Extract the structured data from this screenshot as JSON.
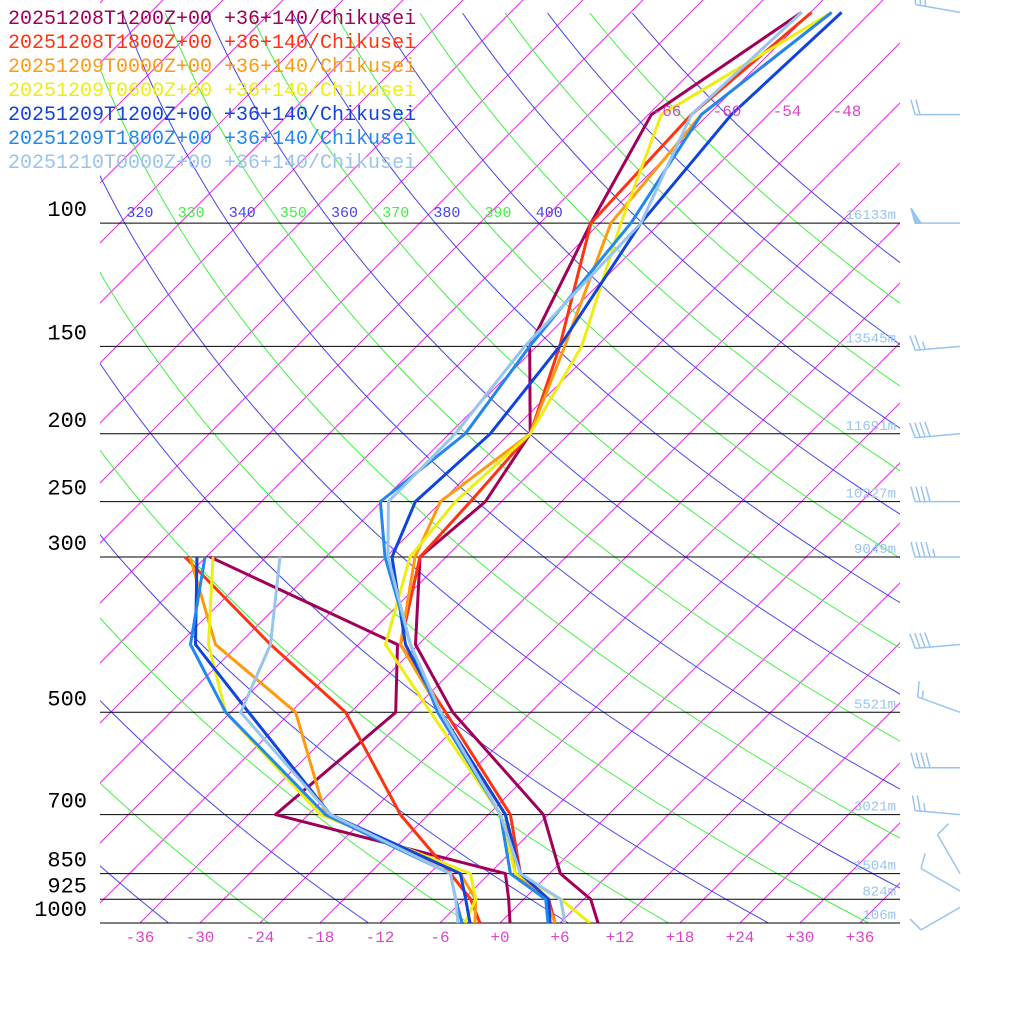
{
  "chart_data": {
    "type": "skewt",
    "levels": [
      1000,
      925,
      850,
      700,
      500,
      400,
      300,
      250,
      200,
      150,
      100,
      70,
      50
    ],
    "series": [
      {
        "name": "20251208T1200Z+00 +36+140/Chikusei",
        "color": "#a0005a",
        "temperature": [
          9.8,
          6.7,
          1.1,
          -6.5,
          -25.8,
          -36.3,
          -44.6,
          -43.6,
          -45.9,
          -54.7,
          -60.9,
          -65.7,
          -60.9
        ],
        "dewpoint": [
          1.0,
          -1.5,
          -4.4,
          -33.3,
          -31.5,
          -38.1,
          -65.6,
          null,
          null,
          null,
          null,
          null,
          null
        ]
      },
      {
        "name": "20251208T1800Z+00 +36+140/Chikusei",
        "color": "#ff3311",
        "temperature": [
          5.5,
          2.5,
          -2.9,
          -9.8,
          -26.5,
          -37.8,
          -44.6,
          -45.1,
          -45.9,
          -51.7,
          -60.9,
          -61.7,
          -59.9
        ],
        "dewpoint": [
          -2.0,
          -5.3,
          -9.9,
          -20.8,
          -36.5,
          -50.8,
          -68.1,
          null,
          null,
          null,
          null,
          null,
          null
        ]
      },
      {
        "name": "20251209T0000Z+00 +36+140/Chikusei",
        "color": "#ff9911",
        "temperature": [
          5.5,
          2.2,
          -3.4,
          -10.3,
          -27.0,
          -37.8,
          -45.1,
          -48.1,
          -45.9,
          -51.2,
          -58.9,
          -60.7,
          -57.9
        ],
        "dewpoint": [
          -2.5,
          -4.8,
          -8.9,
          -28.3,
          -41.5,
          -56.3,
          -67.6,
          null,
          null,
          null,
          null,
          null,
          null
        ]
      },
      {
        "name": "20251209T0600Z+00 +36+140/Chikusei",
        "color": "#eeee11",
        "temperature": [
          9.0,
          3.7,
          -3.4,
          -10.8,
          -28.0,
          -39.3,
          -45.6,
          -46.6,
          -45.9,
          -49.5,
          -57.9,
          -64.7,
          -57.9
        ],
        "dewpoint": [
          -3.5,
          -4.8,
          -7.9,
          -28.8,
          -48.5,
          -57.0,
          -65.3,
          null,
          null,
          null,
          null,
          null,
          null
        ]
      },
      {
        "name": "20251209T1200Z+00 +36+140/Chikusei",
        "color": "#1144dd",
        "temperature": [
          5.0,
          2.5,
          -2.9,
          -10.3,
          -27.0,
          -37.3,
          -47.4,
          -50.6,
          -49.9,
          -51.7,
          -55.9,
          -57.7,
          -56.9
        ],
        "dewpoint": [
          -3.0,
          -5.8,
          -8.9,
          -27.8,
          -46.2,
          -58.3,
          -66.9,
          null,
          null,
          null,
          null,
          null,
          null
        ]
      },
      {
        "name": "20251209T1800Z+00 +36+140/Chikusei",
        "color": "#2288ee",
        "temperature": [
          4.8,
          2.2,
          -3.9,
          -10.8,
          -27.3,
          -36.8,
          -48.1,
          -54.1,
          -52.4,
          -54.7,
          -56.9,
          -60.7,
          -57.9
        ],
        "dewpoint": [
          -3.8,
          -6.8,
          -9.9,
          -28.3,
          -48.5,
          -58.8,
          -66.1,
          null,
          null,
          null,
          null,
          null,
          null
        ]
      },
      {
        "name": "20251210T0000Z+00 +36+140/Chikusei",
        "color": "#99c4ee",
        "temperature": [
          6.5,
          3.7,
          -2.9,
          -10.8,
          -27.0,
          -36.8,
          -47.8,
          -53.3,
          -53.4,
          -55.2,
          -55.9,
          -61.7,
          -60.9
        ],
        "dewpoint": [
          -4.2,
          -6.8,
          -9.9,
          -27.8,
          -47.0,
          -50.8,
          -58.6,
          null,
          null,
          null,
          null,
          null,
          null
        ]
      }
    ],
    "ylim": [
      1000,
      48
    ],
    "yticks": [
      100,
      150,
      200,
      250,
      300,
      500,
      700,
      850,
      925,
      1000
    ],
    "height_labels": [
      "16133m",
      "13545m",
      "11691m",
      "10227m",
      "9049m",
      "5521m",
      "3021m",
      "1504m",
      "824m",
      "106m"
    ],
    "xticks": [
      -36,
      -30,
      -24,
      -18,
      -12,
      -6,
      {
        "value": 0,
        "label": "+0"
      },
      {
        "value": 6,
        "label": "+6"
      },
      {
        "value": 12,
        "label": "+12"
      },
      {
        "value": 18,
        "label": "+18"
      },
      {
        "value": 24,
        "label": "+24"
      },
      {
        "value": 30,
        "label": "+30"
      },
      {
        "value": 36,
        "label": "+36"
      }
    ],
    "isotherms": [
      -132,
      -126,
      -120,
      -114,
      -108,
      -102,
      -96,
      -90,
      -84,
      -78,
      -72,
      -66,
      -60,
      -54,
      -48,
      -42,
      -36,
      -30,
      -24,
      -18,
      -12,
      -6,
      0,
      6,
      12,
      18,
      24,
      30,
      36
    ],
    "isotherm_labels": [
      -66,
      -60,
      -54,
      -48
    ],
    "adiabats": [
      240,
      250,
      260,
      270,
      280,
      290,
      300,
      310,
      320,
      330,
      340,
      350,
      360,
      370,
      380,
      390,
      400,
      410,
      420,
      430,
      440,
      450,
      460
    ],
    "adiabat_labels": [
      320,
      330,
      340,
      350,
      360,
      370,
      380,
      390,
      400
    ],
    "wind": {
      "pressure": [
        50,
        70,
        100,
        150,
        200,
        250,
        300,
        400,
        500,
        600,
        700,
        850,
        900,
        950
      ],
      "direction": [
        280,
        270,
        270,
        265,
        265,
        270,
        270,
        265,
        290,
        270,
        275,
        330,
        300,
        240
      ],
      "speed": [
        25,
        20,
        50,
        25,
        40,
        40,
        45,
        40,
        15,
        40,
        25,
        10,
        10,
        10
      ],
      "color": "#99c4ee"
    }
  }
}
